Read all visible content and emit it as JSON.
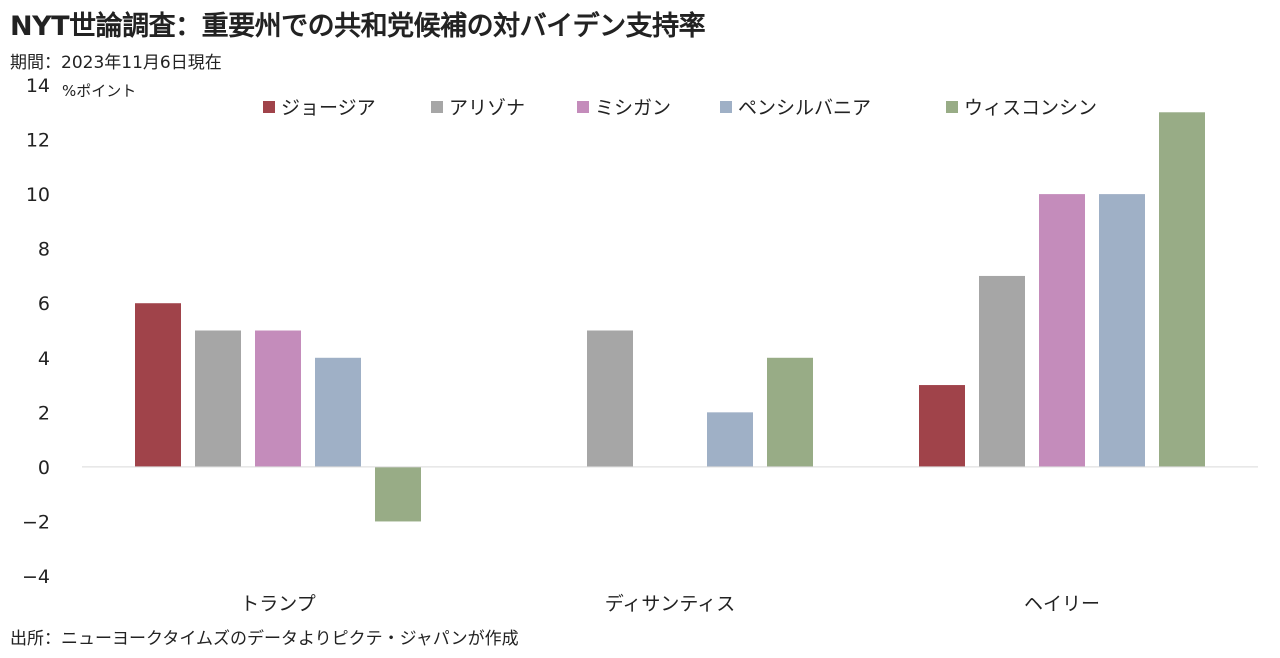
{
  "title": "NYT世論調査：重要州での共和党候補の対バイデン支持率",
  "subtitle": "期間：2023年11月6日現在",
  "source": "出所：ニューヨークタイムズのデータよりピクテ・ジャパンが作成",
  "chart_data": {
    "type": "bar",
    "unit_label": "%ポイント",
    "categories": [
      "トランプ",
      "ディサンティス",
      "ヘイリー"
    ],
    "series": [
      {
        "name": "ジョージア",
        "color": "#A0434A",
        "values": [
          6,
          null,
          3
        ]
      },
      {
        "name": "アリゾナ",
        "color": "#A6A6A6",
        "values": [
          5,
          5,
          7
        ]
      },
      {
        "name": "ミシガン",
        "color": "#C48CBB",
        "values": [
          5,
          null,
          10
        ]
      },
      {
        "name": "ペンシルバニア",
        "color": "#9FB0C6",
        "values": [
          4,
          2,
          10
        ]
      },
      {
        "name": "ウィスコンシン",
        "color": "#98AC86",
        "values": [
          -2,
          4,
          13
        ]
      }
    ],
    "ylim": [
      -4,
      14
    ],
    "yticks": [
      14,
      12,
      10,
      8,
      6,
      4,
      2,
      0,
      -2,
      -4
    ],
    "negative_tick_color": "#E02020",
    "legend_position": "top",
    "grid": false
  }
}
